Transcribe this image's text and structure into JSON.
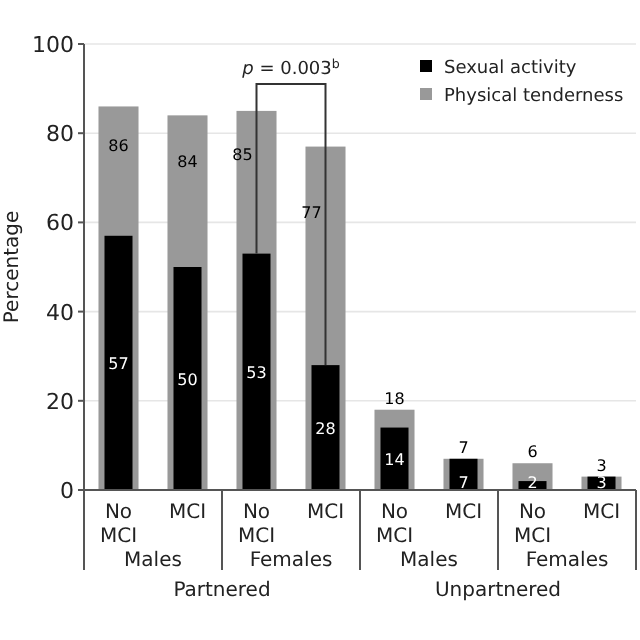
{
  "chart_data": {
    "type": "bar",
    "ylabel": "Percentage",
    "categories": [
      "No MCI",
      "MCI",
      "No MCI",
      "MCI",
      "No MCI",
      "MCI",
      "No MCI",
      "MCI"
    ],
    "series": [
      {
        "name": "Sexual activity",
        "color": "#000000",
        "values": [
          57,
          50,
          53,
          28,
          14,
          7,
          2,
          3
        ]
      },
      {
        "name": "Physical tenderness",
        "color": "#999999",
        "values": [
          86,
          84,
          85,
          77,
          18,
          7,
          6,
          3
        ]
      }
    ],
    "ylim": [
      0,
      100
    ],
    "yticks": [
      0,
      20,
      40,
      60,
      80,
      100
    ],
    "grid": "y",
    "legend": "top right",
    "data_labels": true,
    "annotations": [
      "p = 0.003$^{b}$",
      "Males",
      "Females",
      "Males",
      "Females",
      "Partnered",
      "Unpartnered"
    ]
  }
}
